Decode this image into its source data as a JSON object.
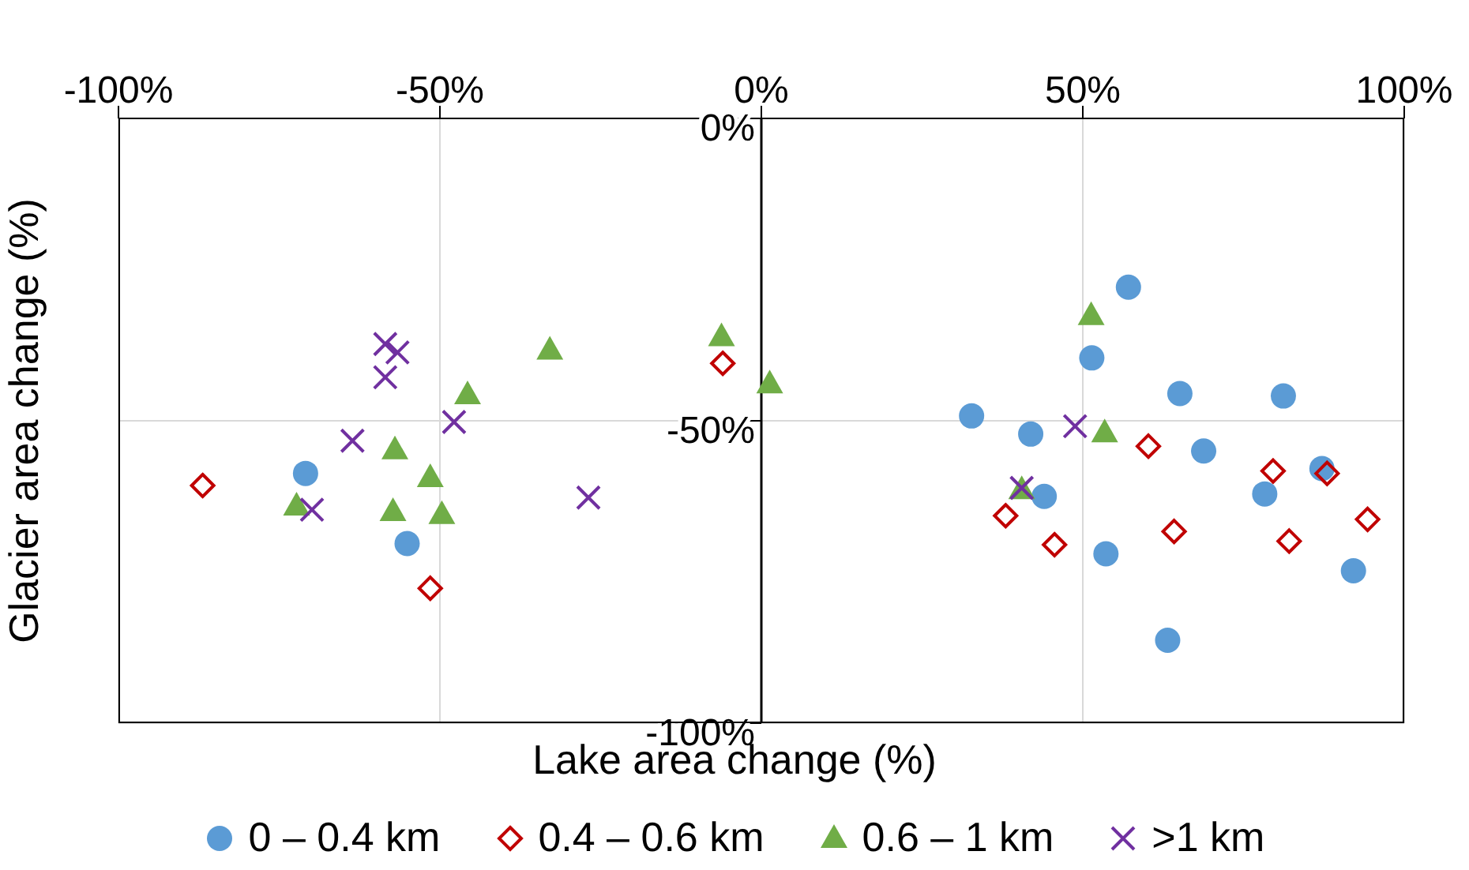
{
  "chart_data": {
    "type": "scatter",
    "xlabel": "Lake area change (%)",
    "ylabel": "Glacier area change (%)",
    "xlim": [
      -100,
      100
    ],
    "ylim": [
      -100,
      0
    ],
    "xticks": [
      {
        "value": -100,
        "label": "-100%"
      },
      {
        "value": -50,
        "label": "-50%"
      },
      {
        "value": 0,
        "label": "0%"
      },
      {
        "value": 50,
        "label": "50%"
      },
      {
        "value": 100,
        "label": "100%"
      }
    ],
    "yticks": [
      {
        "value": 0,
        "label": "0%"
      },
      {
        "value": -50,
        "label": "-50%"
      },
      {
        "value": -100,
        "label": "-100%"
      }
    ],
    "grid": true,
    "legend": "bottom",
    "series": [
      {
        "name": "0 – 0.4 km",
        "color": "#5b9bd5",
        "marker": "circle",
        "x": [
          -70.9,
          -55.1,
          57.1,
          51.4,
          65.1,
          81.2,
          32.7,
          41.9,
          68.8,
          87.2,
          78.3,
          44.0,
          53.6,
          92.1,
          63.2
        ],
        "values": [
          -58.7,
          -70.3,
          -27.9,
          -39.6,
          -45.5,
          -45.9,
          -49.2,
          -52.2,
          -55.0,
          -57.9,
          -62.1,
          -62.5,
          -72.0,
          -74.8,
          -86.3
        ]
      },
      {
        "name": "0.4 – 0.6 km",
        "color": "#c00000",
        "marker": "diamond",
        "x": [
          -86.9,
          -6.0,
          -51.5,
          60.2,
          79.6,
          88.0,
          38.0,
          45.6,
          64.2,
          82.1,
          94.3
        ],
        "values": [
          -60.7,
          -40.5,
          -77.7,
          -54.2,
          -58.3,
          -58.7,
          -65.7,
          -70.5,
          -68.3,
          -69.9,
          -66.3
        ]
      },
      {
        "name": "0.6 – 1 km",
        "color": "#70ad47",
        "marker": "triangle",
        "x": [
          -32.9,
          -6.2,
          1.3,
          -45.7,
          -57.0,
          -51.5,
          -72.3,
          -57.3,
          -49.7,
          51.3,
          53.4,
          40.5
        ],
        "values": [
          -38.3,
          -36.1,
          -43.9,
          -45.7,
          -54.8,
          -59.4,
          -64.1,
          -65.0,
          -65.5,
          -32.6,
          -52.0,
          -61.4
        ]
      },
      {
        "name": ">1 km",
        "color": "#7030a0",
        "marker": "cross",
        "x": [
          -58.5,
          -56.6,
          -58.5,
          -63.6,
          -47.8,
          -69.9,
          -26.9,
          48.8,
          40.5
        ],
        "values": [
          -37.3,
          -38.7,
          -42.8,
          -53.3,
          -50.2,
          -64.7,
          -62.7,
          -50.9,
          -61.1
        ]
      }
    ]
  }
}
